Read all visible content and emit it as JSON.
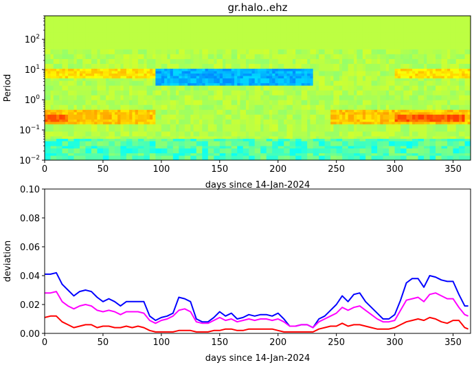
{
  "chart_data": [
    {
      "type": "heatmap",
      "title": "gr.halo..ehz",
      "xlabel": "days since 14-Jan-2024",
      "ylabel": "Period",
      "xlim": [
        0,
        365
      ],
      "ylim": [
        0.01,
        600
      ],
      "yscale": "log",
      "x_ticks": [
        0,
        50,
        100,
        150,
        200,
        250,
        300,
        350
      ],
      "y_ticks": [
        {
          "value": 0.01,
          "base": "10",
          "exp": "−2"
        },
        {
          "value": 0.1,
          "base": "10",
          "exp": "−1"
        },
        {
          "value": 1,
          "base": "10",
          "exp": "0"
        },
        {
          "value": 10,
          "base": "10",
          "exp": "1"
        },
        {
          "value": 100,
          "base": "10",
          "exp": "2"
        }
      ],
      "colormap": "jet",
      "features": [
        {
          "period_range": [
            0.15,
            0.45
          ],
          "day_ranges": [
            [
              0,
              95
            ],
            [
              245,
              365
            ]
          ],
          "level": 0.68,
          "note": "yellow band"
        },
        {
          "period_range": [
            0.18,
            0.32
          ],
          "day_ranges": [
            [
              0,
              20
            ],
            [
              300,
              360
            ]
          ],
          "level": 0.78,
          "note": "orange band"
        },
        {
          "period_range": [
            5,
            12
          ],
          "day_ranges": [
            [
              0,
              95
            ],
            [
              300,
              365
            ]
          ],
          "level": 0.65,
          "note": "yellow band"
        },
        {
          "period_range": [
            3,
            12
          ],
          "day_ranges": [
            [
              95,
              230
            ]
          ],
          "level": 0.3,
          "note": "blue band"
        }
      ]
    },
    {
      "type": "line",
      "title": "",
      "xlabel": "days since 14-Jan-2024",
      "ylabel": "deviation",
      "xlim": [
        0,
        365
      ],
      "ylim": [
        0,
        0.1
      ],
      "x_ticks": [
        0,
        50,
        100,
        150,
        200,
        250,
        300,
        350
      ],
      "y_ticks": [
        "0.00",
        "0.02",
        "0.04",
        "0.06",
        "0.08",
        "0.10"
      ],
      "x": [
        0,
        5,
        10,
        15,
        20,
        25,
        30,
        35,
        40,
        45,
        50,
        55,
        60,
        65,
        70,
        75,
        80,
        85,
        90,
        95,
        100,
        105,
        110,
        115,
        120,
        125,
        130,
        135,
        140,
        145,
        150,
        155,
        160,
        165,
        170,
        175,
        180,
        185,
        190,
        195,
        200,
        205,
        210,
        215,
        220,
        225,
        230,
        235,
        240,
        245,
        250,
        255,
        260,
        265,
        270,
        275,
        280,
        285,
        290,
        295,
        300,
        305,
        310,
        315,
        320,
        325,
        330,
        335,
        340,
        345,
        350,
        355,
        360,
        363
      ],
      "series": [
        {
          "color": "#0000ff",
          "values": [
            0.041,
            0.041,
            0.042,
            0.034,
            0.03,
            0.026,
            0.029,
            0.03,
            0.029,
            0.025,
            0.022,
            0.024,
            0.022,
            0.019,
            0.022,
            0.022,
            0.022,
            0.022,
            0.012,
            0.009,
            0.011,
            0.012,
            0.014,
            0.025,
            0.024,
            0.022,
            0.01,
            0.008,
            0.008,
            0.011,
            0.015,
            0.012,
            0.014,
            0.01,
            0.011,
            0.013,
            0.012,
            0.013,
            0.013,
            0.012,
            0.014,
            0.01,
            0.005,
            0.005,
            0.006,
            0.006,
            0.004,
            0.01,
            0.012,
            0.016,
            0.02,
            0.026,
            0.022,
            0.027,
            0.028,
            0.022,
            0.018,
            0.014,
            0.01,
            0.01,
            0.013,
            0.023,
            0.035,
            0.038,
            0.038,
            0.032,
            0.04,
            0.039,
            0.037,
            0.036,
            0.036,
            0.027,
            0.019,
            0.019
          ]
        },
        {
          "color": "#ff00ff",
          "values": [
            0.028,
            0.028,
            0.029,
            0.022,
            0.019,
            0.017,
            0.019,
            0.02,
            0.019,
            0.016,
            0.015,
            0.016,
            0.015,
            0.013,
            0.015,
            0.015,
            0.015,
            0.014,
            0.009,
            0.007,
            0.009,
            0.01,
            0.012,
            0.016,
            0.017,
            0.015,
            0.008,
            0.007,
            0.007,
            0.009,
            0.011,
            0.009,
            0.01,
            0.008,
            0.009,
            0.01,
            0.009,
            0.01,
            0.01,
            0.009,
            0.01,
            0.008,
            0.005,
            0.005,
            0.006,
            0.006,
            0.004,
            0.008,
            0.01,
            0.012,
            0.014,
            0.018,
            0.016,
            0.018,
            0.019,
            0.016,
            0.013,
            0.01,
            0.008,
            0.008,
            0.009,
            0.016,
            0.023,
            0.024,
            0.025,
            0.022,
            0.027,
            0.028,
            0.026,
            0.024,
            0.024,
            0.018,
            0.013,
            0.012
          ]
        },
        {
          "color": "#ff0000",
          "values": [
            0.011,
            0.012,
            0.012,
            0.008,
            0.006,
            0.004,
            0.005,
            0.006,
            0.006,
            0.004,
            0.005,
            0.005,
            0.004,
            0.004,
            0.005,
            0.004,
            0.005,
            0.004,
            0.002,
            0.001,
            0.001,
            0.001,
            0.001,
            0.002,
            0.002,
            0.002,
            0.001,
            0.001,
            0.001,
            0.002,
            0.002,
            0.003,
            0.003,
            0.002,
            0.002,
            0.003,
            0.003,
            0.003,
            0.003,
            0.003,
            0.002,
            0.001,
            0.001,
            0.001,
            0.001,
            0.001,
            0.001,
            0.003,
            0.004,
            0.005,
            0.005,
            0.007,
            0.005,
            0.006,
            0.006,
            0.005,
            0.004,
            0.003,
            0.003,
            0.003,
            0.004,
            0.006,
            0.008,
            0.009,
            0.01,
            0.009,
            0.011,
            0.01,
            0.008,
            0.007,
            0.009,
            0.009,
            0.004,
            0.003
          ]
        }
      ]
    }
  ]
}
